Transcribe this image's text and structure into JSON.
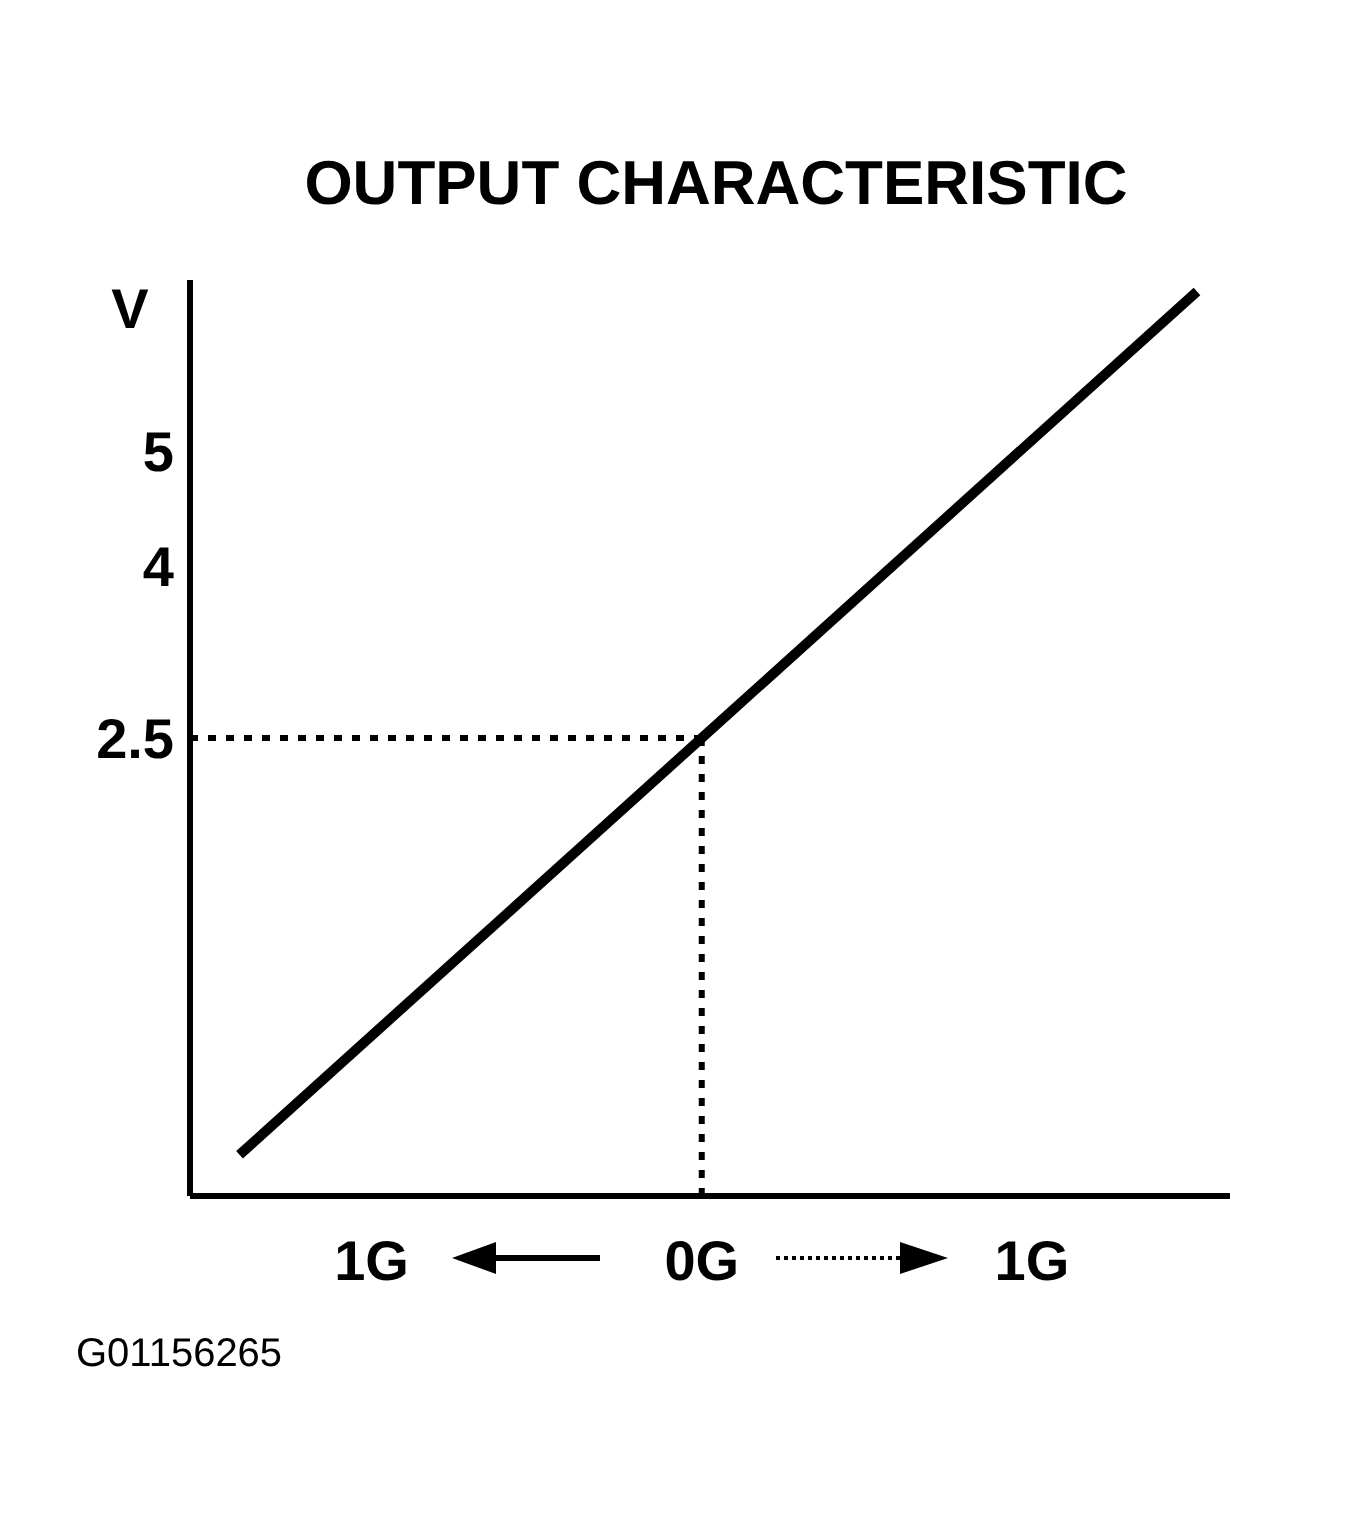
{
  "chart_data": {
    "type": "line",
    "title": "OUTPUT CHARACTERISTIC",
    "ylabel": "V",
    "series": [
      {
        "color": "#000000",
        "x": [
          -1.4,
          0,
          1.5
        ],
        "values": [
          -1.14,
          2.5,
          6.4
        ]
      }
    ],
    "xlim": [
      -1.55,
      1.6
    ],
    "xticks": [
      {
        "value": -1,
        "label": "1G"
      },
      {
        "value": 0,
        "label": "0G"
      },
      {
        "value": 1,
        "label": "1G"
      }
    ],
    "ylim": [
      -1.5,
      6.5
    ],
    "yticks": [
      2.5,
      4,
      5
    ],
    "ref_lines": [
      {
        "axis": "y",
        "value": 2.5,
        "line_style": "dotted"
      },
      {
        "axis": "x",
        "value": 0,
        "line_style": "dotted"
      }
    ],
    "annotations": [
      "G01156265"
    ],
    "grid": false,
    "marker": "none",
    "line_style": "solid"
  }
}
